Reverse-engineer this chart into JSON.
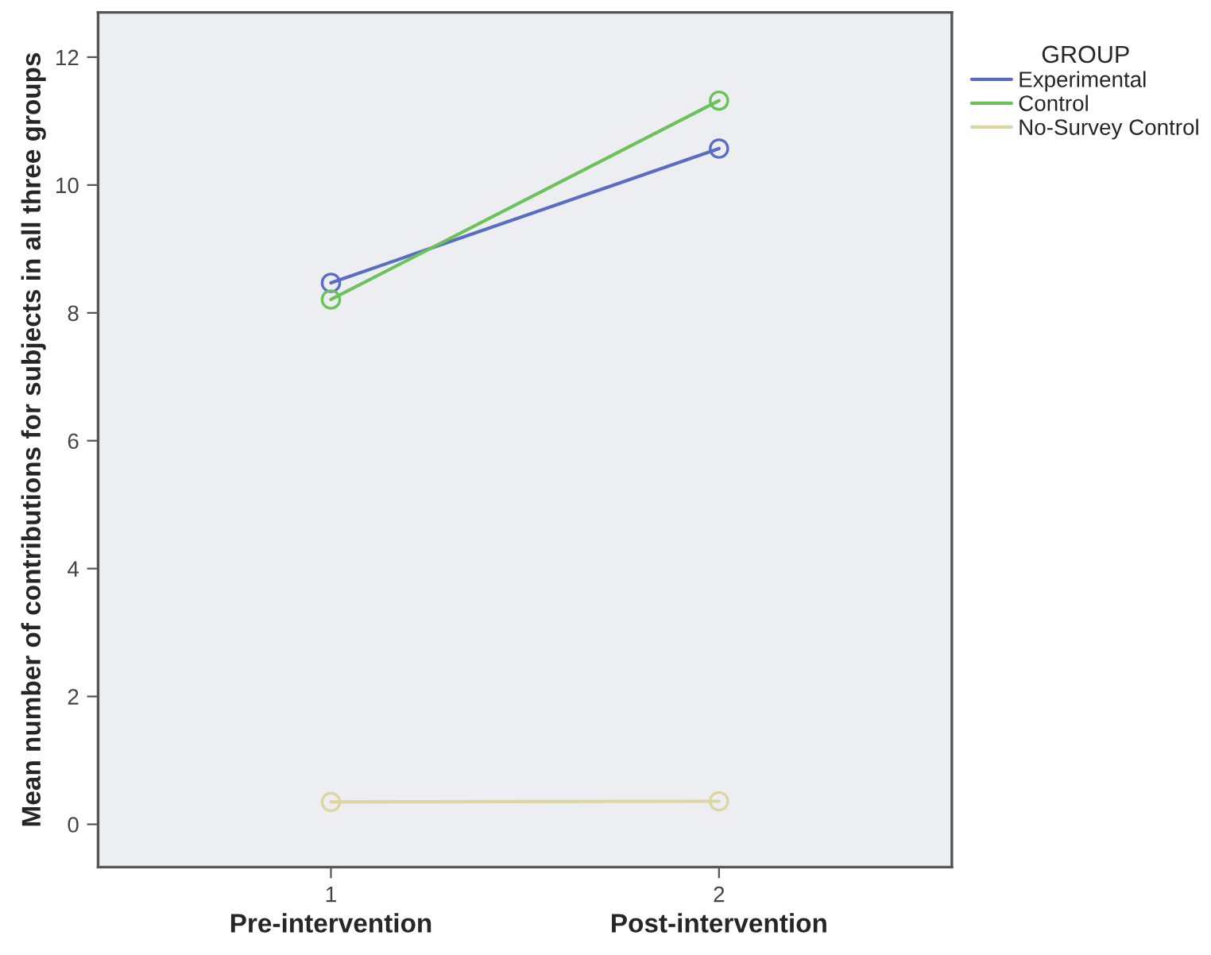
{
  "chart_data": {
    "type": "line",
    "ylabel": "Mean number of contributions for subjects in all three groups",
    "legend_title": "GROUP",
    "x": [
      1,
      2
    ],
    "series": [
      {
        "name": "Experimental",
        "color": "#5b6dc0",
        "values": [
          8.47,
          10.57
        ]
      },
      {
        "name": "Control",
        "color": "#6cc25a",
        "values": [
          8.21,
          11.32
        ]
      },
      {
        "name": "No-Survey Control",
        "color": "#ddd6a0",
        "values": [
          0.35,
          0.36
        ]
      }
    ],
    "xlim": [
      0.4,
      2.6
    ],
    "xticks": [
      1,
      2
    ],
    "ylim": [
      -0.67,
      12.7
    ],
    "yticks": [
      0,
      2,
      4,
      6,
      8,
      10,
      12
    ],
    "annotations": [
      "Pre-intervention",
      "Post-intervention"
    ],
    "marker": "circle",
    "line_style": "solid",
    "legend": "top right",
    "grid": false
  }
}
